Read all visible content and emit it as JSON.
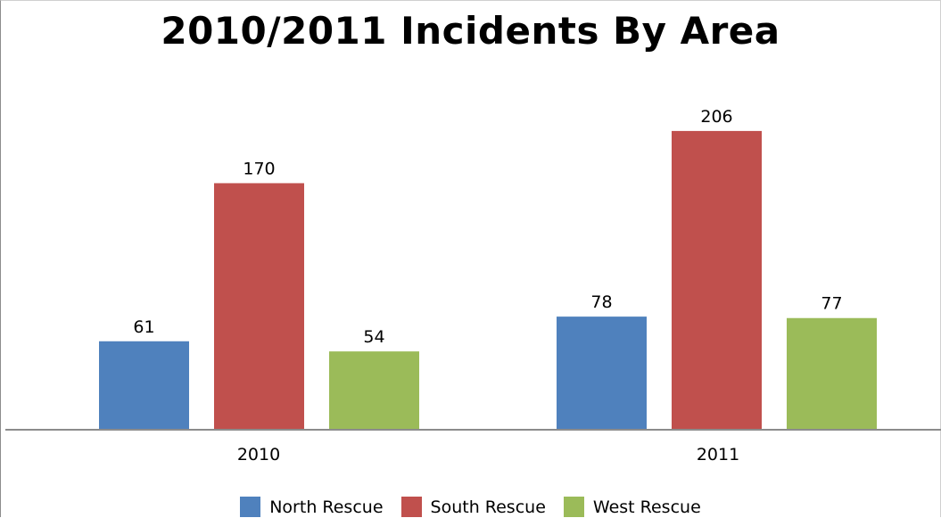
{
  "chart_data": {
    "type": "bar",
    "title": "2010/2011 Incidents By Area",
    "categories": [
      "2010",
      "2011"
    ],
    "series": [
      {
        "name": "North Rescue",
        "color": "#4f81bd",
        "values": [
          61,
          78
        ]
      },
      {
        "name": "South Rescue",
        "color": "#c0504d",
        "values": [
          170,
          206
        ]
      },
      {
        "name": "West Rescue",
        "color": "#9bbb59",
        "values": [
          54,
          77
        ]
      }
    ],
    "ylim": [
      0,
      230
    ],
    "grid": false,
    "data_labels": true,
    "legend_position": "bottom"
  }
}
